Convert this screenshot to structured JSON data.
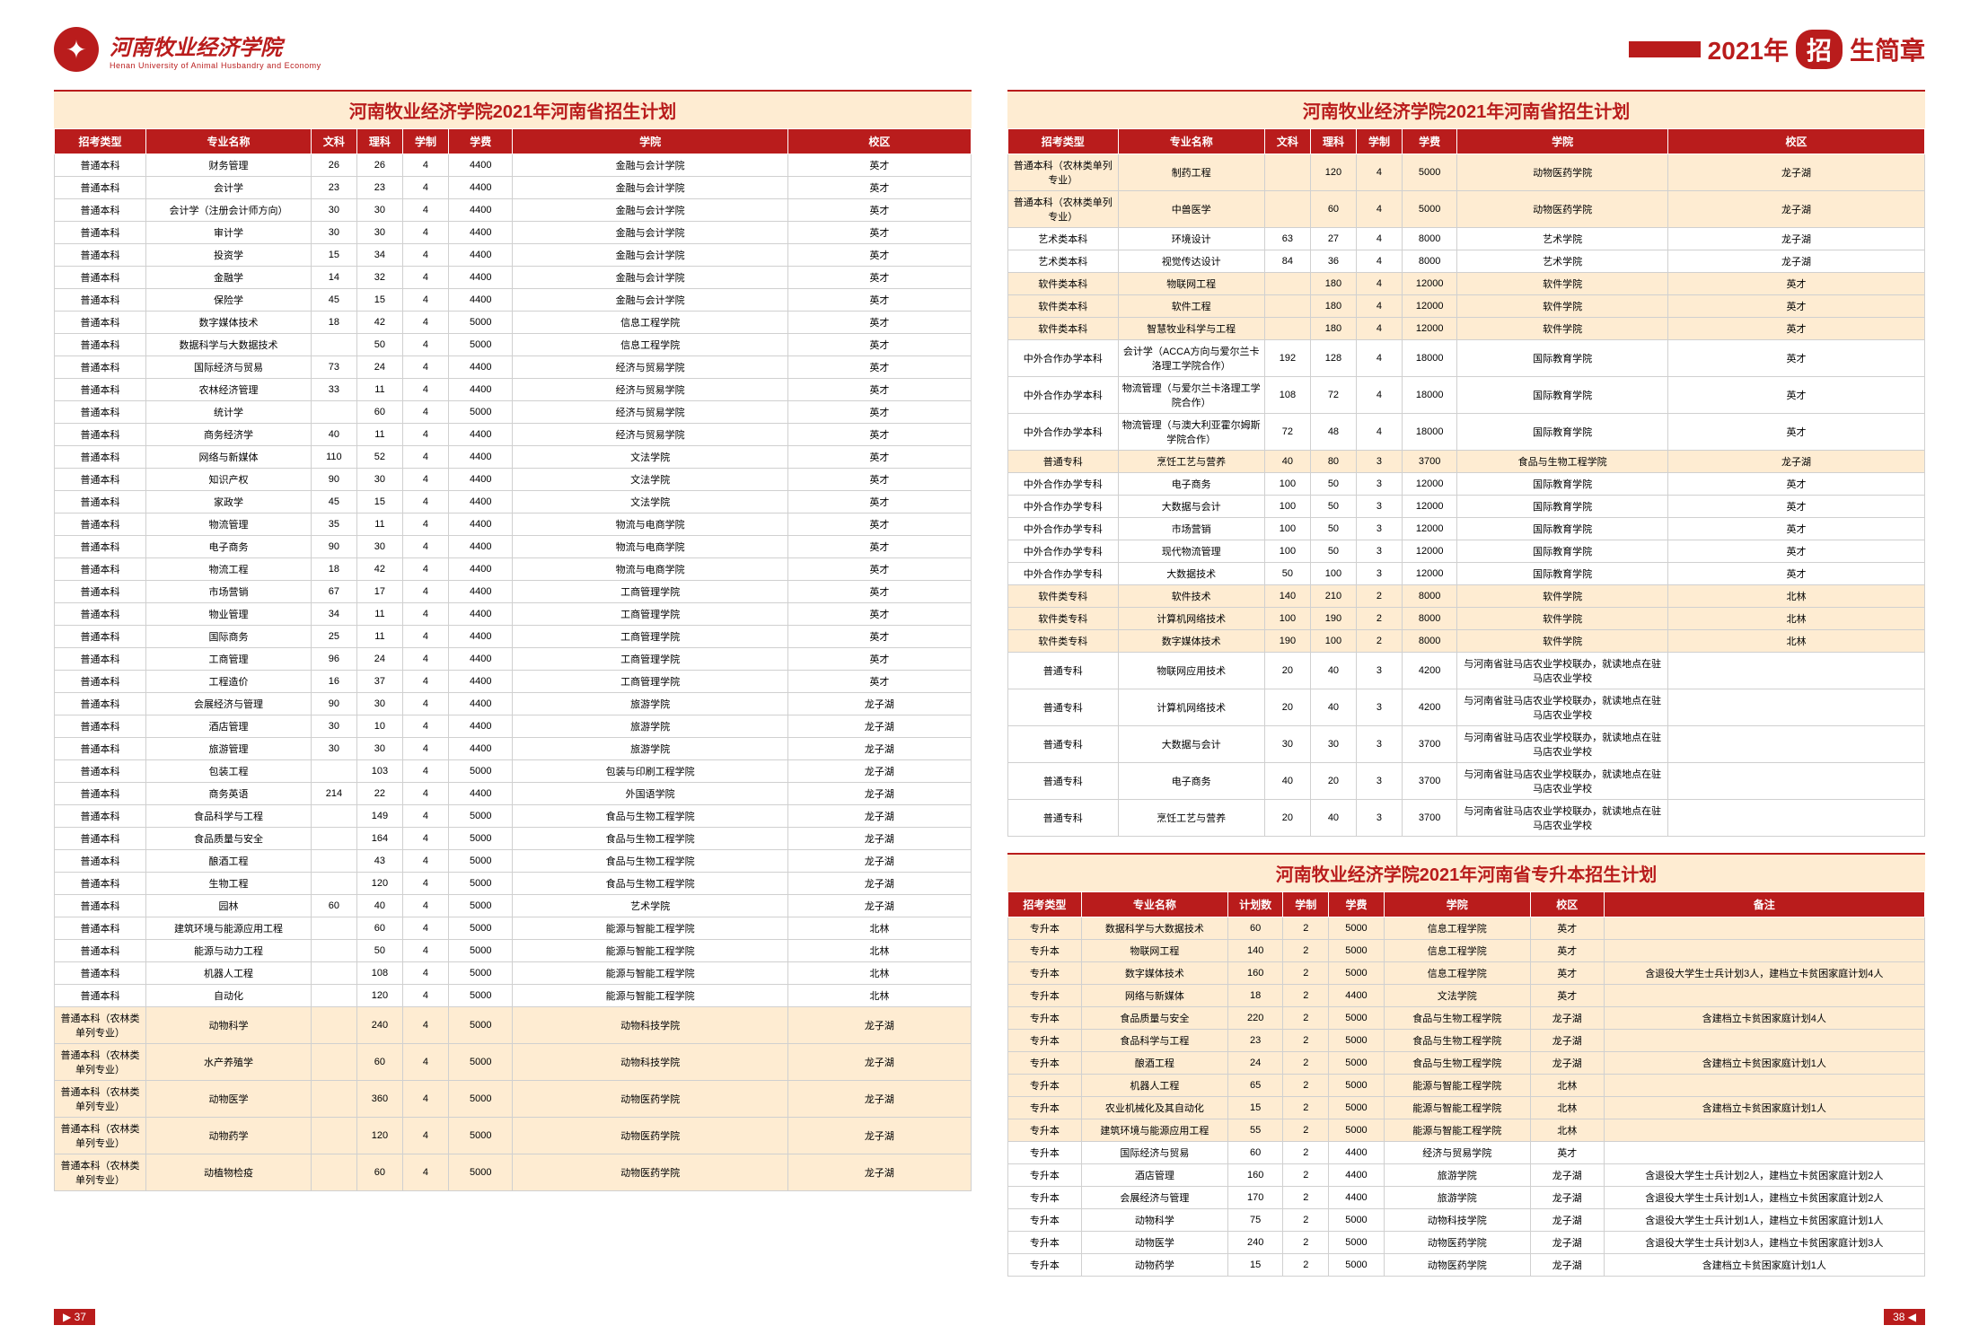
{
  "university": {
    "cn": "河南牧业经济学院",
    "en": "Henan University of Animal Husbandry and Economy"
  },
  "banner": {
    "year": "2021年",
    "badge": "招",
    "suffix": "生简章"
  },
  "pageLeft": "37",
  "pageRight": "38",
  "table1": {
    "title": "河南牧业经济学院2021年河南省招生计划",
    "cols": [
      "招考类型",
      "专业名称",
      "文科",
      "理科",
      "学制",
      "学费",
      "学院",
      "校区"
    ],
    "colw": [
      "10%",
      "18%",
      "5%",
      "5%",
      "5%",
      "7%",
      "30%",
      "20%"
    ],
    "rows": [
      [
        "普通本科",
        "财务管理",
        "26",
        "26",
        "4",
        "4400",
        "金融与会计学院",
        "英才"
      ],
      [
        "普通本科",
        "会计学",
        "23",
        "23",
        "4",
        "4400",
        "金融与会计学院",
        "英才"
      ],
      [
        "普通本科",
        "会计学（注册会计师方向）",
        "30",
        "30",
        "4",
        "4400",
        "金融与会计学院",
        "英才"
      ],
      [
        "普通本科",
        "审计学",
        "30",
        "30",
        "4",
        "4400",
        "金融与会计学院",
        "英才"
      ],
      [
        "普通本科",
        "投资学",
        "15",
        "34",
        "4",
        "4400",
        "金融与会计学院",
        "英才"
      ],
      [
        "普通本科",
        "金融学",
        "14",
        "32",
        "4",
        "4400",
        "金融与会计学院",
        "英才"
      ],
      [
        "普通本科",
        "保险学",
        "45",
        "15",
        "4",
        "4400",
        "金融与会计学院",
        "英才"
      ],
      [
        "普通本科",
        "数字媒体技术",
        "18",
        "42",
        "4",
        "5000",
        "信息工程学院",
        "英才"
      ],
      [
        "普通本科",
        "数据科学与大数据技术",
        "",
        "50",
        "4",
        "5000",
        "信息工程学院",
        "英才"
      ],
      [
        "普通本科",
        "国际经济与贸易",
        "73",
        "24",
        "4",
        "4400",
        "经济与贸易学院",
        "英才"
      ],
      [
        "普通本科",
        "农林经济管理",
        "33",
        "11",
        "4",
        "4400",
        "经济与贸易学院",
        "英才"
      ],
      [
        "普通本科",
        "统计学",
        "",
        "60",
        "4",
        "5000",
        "经济与贸易学院",
        "英才"
      ],
      [
        "普通本科",
        "商务经济学",
        "40",
        "11",
        "4",
        "4400",
        "经济与贸易学院",
        "英才"
      ],
      [
        "普通本科",
        "网络与新媒体",
        "110",
        "52",
        "4",
        "4400",
        "文法学院",
        "英才"
      ],
      [
        "普通本科",
        "知识产权",
        "90",
        "30",
        "4",
        "4400",
        "文法学院",
        "英才"
      ],
      [
        "普通本科",
        "家政学",
        "45",
        "15",
        "4",
        "4400",
        "文法学院",
        "英才"
      ],
      [
        "普通本科",
        "物流管理",
        "35",
        "11",
        "4",
        "4400",
        "物流与电商学院",
        "英才"
      ],
      [
        "普通本科",
        "电子商务",
        "90",
        "30",
        "4",
        "4400",
        "物流与电商学院",
        "英才"
      ],
      [
        "普通本科",
        "物流工程",
        "18",
        "42",
        "4",
        "4400",
        "物流与电商学院",
        "英才"
      ],
      [
        "普通本科",
        "市场营销",
        "67",
        "17",
        "4",
        "4400",
        "工商管理学院",
        "英才"
      ],
      [
        "普通本科",
        "物业管理",
        "34",
        "11",
        "4",
        "4400",
        "工商管理学院",
        "英才"
      ],
      [
        "普通本科",
        "国际商务",
        "25",
        "11",
        "4",
        "4400",
        "工商管理学院",
        "英才"
      ],
      [
        "普通本科",
        "工商管理",
        "96",
        "24",
        "4",
        "4400",
        "工商管理学院",
        "英才"
      ],
      [
        "普通本科",
        "工程造价",
        "16",
        "37",
        "4",
        "4400",
        "工商管理学院",
        "英才"
      ],
      [
        "普通本科",
        "会展经济与管理",
        "90",
        "30",
        "4",
        "4400",
        "旅游学院",
        "龙子湖"
      ],
      [
        "普通本科",
        "酒店管理",
        "30",
        "10",
        "4",
        "4400",
        "旅游学院",
        "龙子湖"
      ],
      [
        "普通本科",
        "旅游管理",
        "30",
        "30",
        "4",
        "4400",
        "旅游学院",
        "龙子湖"
      ],
      [
        "普通本科",
        "包装工程",
        "",
        "103",
        "4",
        "5000",
        "包装与印刷工程学院",
        "龙子湖"
      ],
      [
        "普通本科",
        "商务英语",
        "214",
        "22",
        "4",
        "4400",
        "外国语学院",
        "龙子湖"
      ],
      [
        "普通本科",
        "食品科学与工程",
        "",
        "149",
        "4",
        "5000",
        "食品与生物工程学院",
        "龙子湖"
      ],
      [
        "普通本科",
        "食品质量与安全",
        "",
        "164",
        "4",
        "5000",
        "食品与生物工程学院",
        "龙子湖"
      ],
      [
        "普通本科",
        "酿酒工程",
        "",
        "43",
        "4",
        "5000",
        "食品与生物工程学院",
        "龙子湖"
      ],
      [
        "普通本科",
        "生物工程",
        "",
        "120",
        "4",
        "5000",
        "食品与生物工程学院",
        "龙子湖"
      ],
      [
        "普通本科",
        "园林",
        "60",
        "40",
        "4",
        "5000",
        "艺术学院",
        "龙子湖"
      ],
      [
        "普通本科",
        "建筑环境与能源应用工程",
        "",
        "60",
        "4",
        "5000",
        "能源与智能工程学院",
        "北林"
      ],
      [
        "普通本科",
        "能源与动力工程",
        "",
        "50",
        "4",
        "5000",
        "能源与智能工程学院",
        "北林"
      ],
      [
        "普通本科",
        "机器人工程",
        "",
        "108",
        "4",
        "5000",
        "能源与智能工程学院",
        "北林"
      ],
      [
        "普通本科",
        "自动化",
        "",
        "120",
        "4",
        "5000",
        "能源与智能工程学院",
        "北林"
      ]
    ],
    "hlrows": [
      [
        "普通本科（农林类单列专业）",
        "动物科学",
        "",
        "240",
        "4",
        "5000",
        "动物科技学院",
        "龙子湖"
      ],
      [
        "普通本科（农林类单列专业）",
        "水产养殖学",
        "",
        "60",
        "4",
        "5000",
        "动物科技学院",
        "龙子湖"
      ],
      [
        "普通本科（农林类单列专业）",
        "动物医学",
        "",
        "360",
        "4",
        "5000",
        "动物医药学院",
        "龙子湖"
      ],
      [
        "普通本科（农林类单列专业）",
        "动物药学",
        "",
        "120",
        "4",
        "5000",
        "动物医药学院",
        "龙子湖"
      ],
      [
        "普通本科（农林类单列专业）",
        "动植物检疫",
        "",
        "60",
        "4",
        "5000",
        "动物医药学院",
        "龙子湖"
      ]
    ]
  },
  "table2": {
    "title": "河南牧业经济学院2021年河南省招生计划",
    "cols": [
      "招考类型",
      "专业名称",
      "文科",
      "理科",
      "学制",
      "学费",
      "学院",
      "校区"
    ],
    "colw": [
      "12%",
      "16%",
      "5%",
      "5%",
      "5%",
      "6%",
      "23%",
      "28%"
    ],
    "rows": [
      {
        "hl": true,
        "d": [
          "普通本科（农林类单列专业）",
          "制药工程",
          "",
          "120",
          "4",
          "5000",
          "动物医药学院",
          "龙子湖"
        ]
      },
      {
        "hl": true,
        "d": [
          "普通本科（农林类单列专业）",
          "中兽医学",
          "",
          "60",
          "4",
          "5000",
          "动物医药学院",
          "龙子湖"
        ]
      },
      {
        "d": [
          "艺术类本科",
          "环境设计",
          "63",
          "27",
          "4",
          "8000",
          "艺术学院",
          "龙子湖"
        ]
      },
      {
        "d": [
          "艺术类本科",
          "视觉传达设计",
          "84",
          "36",
          "4",
          "8000",
          "艺术学院",
          "龙子湖"
        ]
      },
      {
        "hl": true,
        "d": [
          "软件类本科",
          "物联网工程",
          "",
          "180",
          "4",
          "12000",
          "软件学院",
          "英才"
        ]
      },
      {
        "hl": true,
        "d": [
          "软件类本科",
          "软件工程",
          "",
          "180",
          "4",
          "12000",
          "软件学院",
          "英才"
        ]
      },
      {
        "hl": true,
        "d": [
          "软件类本科",
          "智慧牧业科学与工程",
          "",
          "180",
          "4",
          "12000",
          "软件学院",
          "英才"
        ]
      },
      {
        "d": [
          "中外合作办学本科",
          "会计学（ACCA方向与爱尔兰卡洛理工学院合作）",
          "192",
          "128",
          "4",
          "18000",
          "国际教育学院",
          "英才"
        ]
      },
      {
        "d": [
          "中外合作办学本科",
          "物流管理（与爱尔兰卡洛理工学院合作）",
          "108",
          "72",
          "4",
          "18000",
          "国际教育学院",
          "英才"
        ]
      },
      {
        "d": [
          "中外合作办学本科",
          "物流管理（与澳大利亚霍尔姆斯学院合作）",
          "72",
          "48",
          "4",
          "18000",
          "国际教育学院",
          "英才"
        ]
      },
      {
        "hl": true,
        "d": [
          "普通专科",
          "烹饪工艺与营养",
          "40",
          "80",
          "3",
          "3700",
          "食品与生物工程学院",
          "龙子湖"
        ]
      },
      {
        "d": [
          "中外合作办学专科",
          "电子商务",
          "100",
          "50",
          "3",
          "12000",
          "国际教育学院",
          "英才"
        ]
      },
      {
        "d": [
          "中外合作办学专科",
          "大数据与会计",
          "100",
          "50",
          "3",
          "12000",
          "国际教育学院",
          "英才"
        ]
      },
      {
        "d": [
          "中外合作办学专科",
          "市场营销",
          "100",
          "50",
          "3",
          "12000",
          "国际教育学院",
          "英才"
        ]
      },
      {
        "d": [
          "中外合作办学专科",
          "现代物流管理",
          "100",
          "50",
          "3",
          "12000",
          "国际教育学院",
          "英才"
        ]
      },
      {
        "d": [
          "中外合作办学专科",
          "大数据技术",
          "50",
          "100",
          "3",
          "12000",
          "国际教育学院",
          "英才"
        ]
      },
      {
        "hl": true,
        "d": [
          "软件类专科",
          "软件技术",
          "140",
          "210",
          "2",
          "8000",
          "软件学院",
          "北林"
        ]
      },
      {
        "hl": true,
        "d": [
          "软件类专科",
          "计算机网络技术",
          "100",
          "190",
          "2",
          "8000",
          "软件学院",
          "北林"
        ]
      },
      {
        "hl": true,
        "d": [
          "软件类专科",
          "数字媒体技术",
          "190",
          "100",
          "2",
          "8000",
          "软件学院",
          "北林"
        ]
      },
      {
        "d": [
          "普通专科",
          "物联网应用技术",
          "20",
          "40",
          "3",
          "4200",
          "与河南省驻马店农业学校联办，就读地点在驻马店农业学校",
          ""
        ]
      },
      {
        "d": [
          "普通专科",
          "计算机网络技术",
          "20",
          "40",
          "3",
          "4200",
          "与河南省驻马店农业学校联办，就读地点在驻马店农业学校",
          ""
        ]
      },
      {
        "d": [
          "普通专科",
          "大数据与会计",
          "30",
          "30",
          "3",
          "3700",
          "与河南省驻马店农业学校联办，就读地点在驻马店农业学校",
          ""
        ]
      },
      {
        "d": [
          "普通专科",
          "电子商务",
          "40",
          "20",
          "3",
          "3700",
          "与河南省驻马店农业学校联办，就读地点在驻马店农业学校",
          ""
        ]
      },
      {
        "d": [
          "普通专科",
          "烹饪工艺与营养",
          "20",
          "40",
          "3",
          "3700",
          "与河南省驻马店农业学校联办，就读地点在驻马店农业学校",
          ""
        ]
      }
    ]
  },
  "table3": {
    "title": "河南牧业经济学院2021年河南省专升本招生计划",
    "cols": [
      "招考类型",
      "专业名称",
      "计划数",
      "学制",
      "学费",
      "学院",
      "校区",
      "备注"
    ],
    "colw": [
      "8%",
      "16%",
      "6%",
      "5%",
      "6%",
      "16%",
      "8%",
      "35%"
    ],
    "rows": [
      {
        "hl": true,
        "d": [
          "专升本",
          "数据科学与大数据技术",
          "60",
          "2",
          "5000",
          "信息工程学院",
          "英才",
          ""
        ]
      },
      {
        "hl": true,
        "d": [
          "专升本",
          "物联网工程",
          "140",
          "2",
          "5000",
          "信息工程学院",
          "英才",
          ""
        ]
      },
      {
        "hl": true,
        "d": [
          "专升本",
          "数字媒体技术",
          "160",
          "2",
          "5000",
          "信息工程学院",
          "英才",
          "含退役大学生士兵计划3人，建档立卡贫困家庭计划4人"
        ]
      },
      {
        "hl": true,
        "d": [
          "专升本",
          "网络与新媒体",
          "18",
          "2",
          "4400",
          "文法学院",
          "英才",
          ""
        ]
      },
      {
        "hl": true,
        "d": [
          "专升本",
          "食品质量与安全",
          "220",
          "2",
          "5000",
          "食品与生物工程学院",
          "龙子湖",
          "含建档立卡贫困家庭计划4人"
        ]
      },
      {
        "hl": true,
        "d": [
          "专升本",
          "食品科学与工程",
          "23",
          "2",
          "5000",
          "食品与生物工程学院",
          "龙子湖",
          ""
        ]
      },
      {
        "hl": true,
        "d": [
          "专升本",
          "酿酒工程",
          "24",
          "2",
          "5000",
          "食品与生物工程学院",
          "龙子湖",
          "含建档立卡贫困家庭计划1人"
        ]
      },
      {
        "hl": true,
        "d": [
          "专升本",
          "机器人工程",
          "65",
          "2",
          "5000",
          "能源与智能工程学院",
          "北林",
          ""
        ]
      },
      {
        "hl": true,
        "d": [
          "专升本",
          "农业机械化及其自动化",
          "15",
          "2",
          "5000",
          "能源与智能工程学院",
          "北林",
          "含建档立卡贫困家庭计划1人"
        ]
      },
      {
        "hl": true,
        "d": [
          "专升本",
          "建筑环境与能源应用工程",
          "55",
          "2",
          "5000",
          "能源与智能工程学院",
          "北林",
          ""
        ]
      },
      {
        "d": [
          "专升本",
          "国际经济与贸易",
          "60",
          "2",
          "4400",
          "经济与贸易学院",
          "英才",
          ""
        ]
      },
      {
        "d": [
          "专升本",
          "酒店管理",
          "160",
          "2",
          "4400",
          "旅游学院",
          "龙子湖",
          "含退役大学生士兵计划2人，建档立卡贫困家庭计划2人"
        ]
      },
      {
        "d": [
          "专升本",
          "会展经济与管理",
          "170",
          "2",
          "4400",
          "旅游学院",
          "龙子湖",
          "含退役大学生士兵计划1人，建档立卡贫困家庭计划2人"
        ]
      },
      {
        "d": [
          "专升本",
          "动物科学",
          "75",
          "2",
          "5000",
          "动物科技学院",
          "龙子湖",
          "含退役大学生士兵计划1人，建档立卡贫困家庭计划1人"
        ]
      },
      {
        "d": [
          "专升本",
          "动物医学",
          "240",
          "2",
          "5000",
          "动物医药学院",
          "龙子湖",
          "含退役大学生士兵计划3人，建档立卡贫困家庭计划3人"
        ]
      },
      {
        "d": [
          "专升本",
          "动物药学",
          "15",
          "2",
          "5000",
          "动物医药学院",
          "龙子湖",
          "含建档立卡贫困家庭计划1人"
        ]
      }
    ]
  }
}
